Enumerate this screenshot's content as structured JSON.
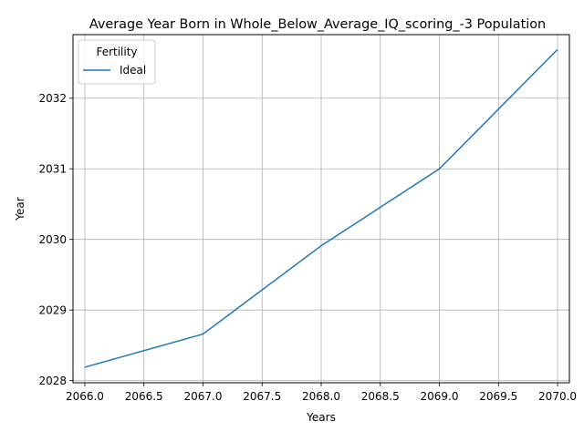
{
  "chart_data": {
    "type": "line",
    "title": "Average Year Born in Whole_Below_Average_IQ_scoring_-3 Population",
    "xlabel": "Years",
    "ylabel": "Year",
    "xlim": [
      2065.9,
      2070.1
    ],
    "ylim": [
      2027.97,
      2032.9
    ],
    "x_ticks": [
      2066.0,
      2066.5,
      2067.0,
      2067.5,
      2068.0,
      2068.5,
      2069.0,
      2069.5,
      2070.0
    ],
    "x_tick_labels": [
      "2066.0",
      "2066.5",
      "2067.0",
      "2067.5",
      "2068.0",
      "2068.5",
      "2069.0",
      "2069.5",
      "2070.0"
    ],
    "y_ticks": [
      2028,
      2029,
      2030,
      2031,
      2032
    ],
    "y_tick_labels": [
      "2028",
      "2029",
      "2030",
      "2031",
      "2032"
    ],
    "grid": true,
    "legend": {
      "title": "Fertility",
      "position": "top-left"
    },
    "series": [
      {
        "name": "Ideal",
        "color": "#1f77b4",
        "x": [
          2066,
          2067,
          2068,
          2069,
          2070
        ],
        "y": [
          2028.19,
          2028.66,
          2029.91,
          2031.0,
          2032.69
        ]
      }
    ]
  }
}
